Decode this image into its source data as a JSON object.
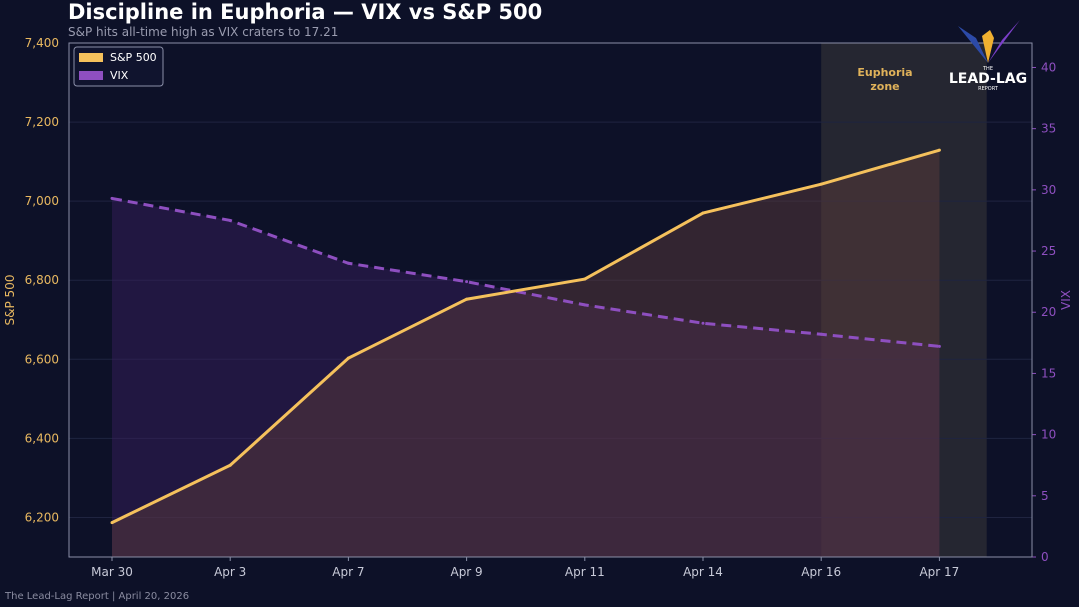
{
  "chart_data": {
    "type": "line",
    "title": "Discipline in Euphoria — VIX vs S&P 500",
    "subtitle": "S&P hits all-time high as VIX craters to 17.21",
    "categories": [
      "Mar 30",
      "Apr 3",
      "Apr 7",
      "Apr 9",
      "Apr 11",
      "Apr 14",
      "Apr 16",
      "Apr 17"
    ],
    "series": [
      {
        "name": "S&P 500",
        "axis": "left",
        "style": "solid",
        "fill": true,
        "color": "#f5c15c",
        "values": [
          6187,
          6332,
          6603,
          6752,
          6803,
          6970,
          7043,
          7129
        ]
      },
      {
        "name": "VIX",
        "axis": "right",
        "style": "dashed",
        "fill": true,
        "color": "#8e4fc0",
        "values": [
          29.3,
          27.5,
          24.0,
          22.5,
          20.6,
          19.1,
          18.2,
          17.21
        ]
      }
    ],
    "ylabel_left": "S&P 500",
    "ylabel_right": "VIX",
    "ylim_left": [
      6100,
      7400
    ],
    "ylim_right": [
      0,
      42
    ],
    "yticks_left": [
      "6,200",
      "6,400",
      "6,600",
      "6,800",
      "7,000",
      "7,200",
      "7,400"
    ],
    "yticks_right": [
      "0",
      "5",
      "10",
      "15",
      "20",
      "25",
      "30",
      "35",
      "40"
    ],
    "grid": true,
    "legend": "top-left",
    "annotation": {
      "text_line1": "Euphoria",
      "text_line2": "zone",
      "from": "Apr 16",
      "color": "#e0b25a"
    }
  },
  "footer": "The Lead-Lag Report  |  April 20, 2026",
  "logo": {
    "top": "THE",
    "main": "LEAD-LAG",
    "bottom": "REPORT"
  }
}
